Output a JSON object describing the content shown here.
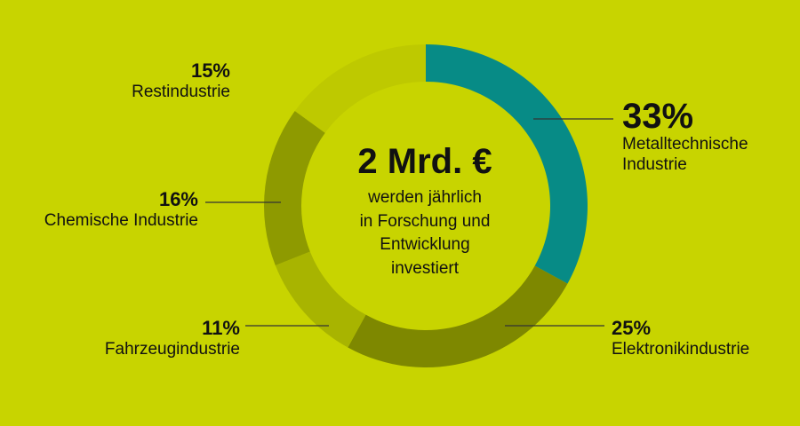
{
  "colors": {
    "background": "#c8d400",
    "metall": "#078b86",
    "elektronik": "#7e8800",
    "fahrzeug": "#a8b400",
    "chemie": "#8e9a00",
    "rest": "#bec900",
    "leader": "#333333"
  },
  "center": {
    "headline": "2 Mrd. €",
    "lines": [
      "werden jährlich",
      "in Forschung und",
      "Entwicklung",
      "investiert"
    ]
  },
  "chart_data": {
    "type": "pie",
    "categories": [
      "Metalltechnische Industrie",
      "Elektronikindustrie",
      "Fahrzeugindustrie",
      "Chemische Industrie",
      "Restindustrie"
    ],
    "values": [
      33,
      25,
      11,
      16,
      15
    ],
    "unit": "%",
    "labels": [
      {
        "percent": "33%",
        "line1": "Metalltechnische",
        "line2": "Industrie"
      },
      {
        "percent": "25%",
        "line1": "Elektronikindustrie"
      },
      {
        "percent": "11%",
        "line1": "Fahrzeugindustrie"
      },
      {
        "percent": "16%",
        "line1": "Chemische Industrie"
      },
      {
        "percent": "15%",
        "line1": "Restindustrie"
      }
    ]
  }
}
